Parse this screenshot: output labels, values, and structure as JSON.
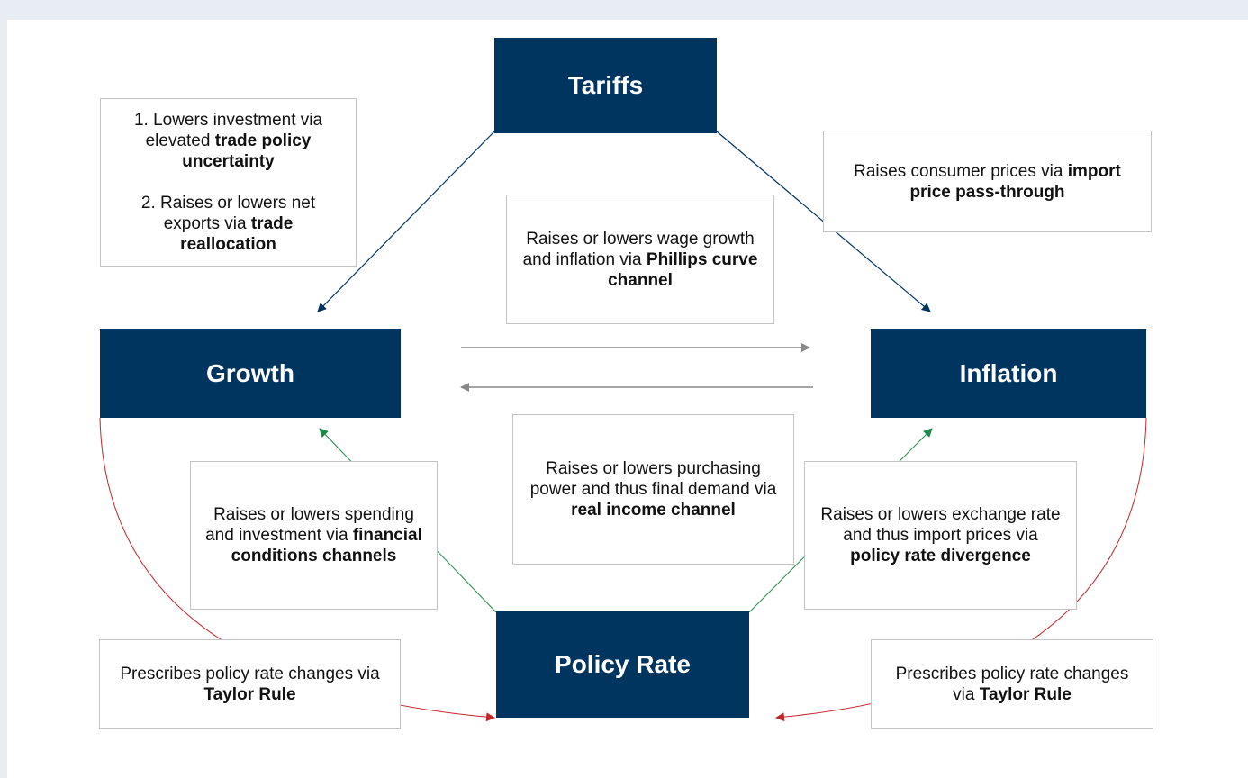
{
  "nodes": [
    {
      "label": "Tariffs"
    },
    {
      "label": "Growth"
    },
    {
      "label": "Inflation"
    },
    {
      "label": "Policy Rate"
    }
  ],
  "boxes": [
    {
      "paragraphs": [
        [
          {
            "text": "1. Lowers investment via elevated ",
            "bold": false
          },
          {
            "text": "trade policy uncertainty",
            "bold": true
          }
        ],
        [
          {
            "text": "2. Raises or lowers net exports via ",
            "bold": false
          },
          {
            "text": "trade reallocation",
            "bold": true
          }
        ]
      ]
    },
    {
      "paragraphs": [
        [
          {
            "text": "Raises consumer prices via ",
            "bold": false
          },
          {
            "text": "import price pass-through",
            "bold": true
          }
        ]
      ]
    },
    {
      "paragraphs": [
        [
          {
            "text": "Raises or lowers wage growth and inflation via ",
            "bold": false
          },
          {
            "text": "Phillips curve channel",
            "bold": true
          }
        ]
      ]
    },
    {
      "paragraphs": [
        [
          {
            "text": "Raises or lowers purchasing power and thus final demand via ",
            "bold": false
          },
          {
            "text": "real income channel",
            "bold": true
          }
        ]
      ]
    },
    {
      "paragraphs": [
        [
          {
            "text": "Raises or lowers spending and investment via ",
            "bold": false
          },
          {
            "text": "financial conditions channels",
            "bold": true
          }
        ]
      ]
    },
    {
      "paragraphs": [
        [
          {
            "text": "Raises or lowers exchange rate and thus import prices via ",
            "bold": false
          },
          {
            "text": "policy rate divergence",
            "bold": true
          }
        ]
      ]
    },
    {
      "paragraphs": [
        [
          {
            "text": "Prescribes policy rate changes via ",
            "bold": false
          },
          {
            "text": "Taylor Rule",
            "bold": true
          }
        ]
      ]
    },
    {
      "paragraphs": [
        [
          {
            "text": "Prescribes policy rate changes via ",
            "bold": false
          },
          {
            "text": "Taylor Rule",
            "bold": true
          }
        ]
      ]
    }
  ]
}
